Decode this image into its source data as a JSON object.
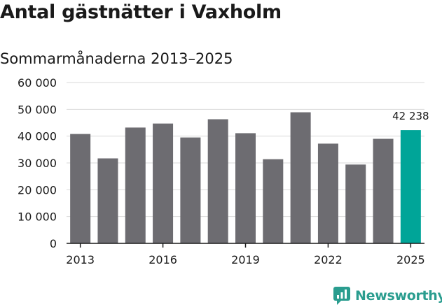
{
  "title": "Antal gästnätter i Vaxholm",
  "subtitle": "Sommarmånaderna 2013–2025",
  "brand": "Newsworthy",
  "colors": {
    "bar": "#6d6c71",
    "highlight": "#00a598",
    "grid": "#d9d9d9",
    "axis": "#1a1a1a",
    "brand": "#2a9d8f"
  },
  "chart_data": {
    "type": "bar",
    "title": "Antal gästnätter i Vaxholm",
    "subtitle": "Sommarmånaderna 2013–2025",
    "categories": [
      "2013",
      "2014",
      "2015",
      "2016",
      "2017",
      "2018",
      "2019",
      "2020",
      "2021",
      "2022",
      "2023",
      "2024",
      "2025"
    ],
    "values": [
      40800,
      31700,
      43200,
      44700,
      39500,
      46300,
      41100,
      31400,
      48900,
      37200,
      29400,
      39000,
      42238
    ],
    "xtick_labels": [
      "2013",
      "2016",
      "2019",
      "2022",
      "2025"
    ],
    "ytick_labels": [
      "0",
      "10 000",
      "20 000",
      "30 000",
      "40 000",
      "50 000",
      "60 000"
    ],
    "ylim": [
      0,
      60000
    ],
    "highlight_category": "2025",
    "highlight_label": "42 238",
    "grid": true,
    "legend": "none"
  }
}
